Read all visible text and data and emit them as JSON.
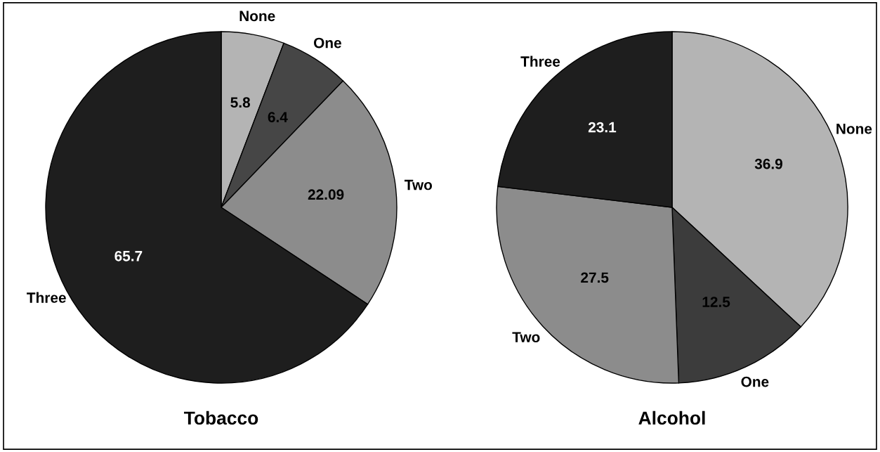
{
  "chart_data": [
    {
      "type": "pie",
      "title": "Tobacco",
      "categories": [
        "None",
        "One",
        "Two",
        "Three"
      ],
      "values": [
        5.8,
        6.4,
        22.09,
        65.7
      ],
      "colors": [
        "#b4b4b4",
        "#464646",
        "#8c8c8c",
        "#1e1e1e"
      ],
      "data_labels": true
    },
    {
      "type": "pie",
      "title": "Alcohol",
      "categories": [
        "None",
        "One",
        "Two",
        "Three"
      ],
      "values": [
        36.9,
        12.5,
        27.5,
        23.1
      ],
      "colors": [
        "#b4b4b4",
        "#3c3c3c",
        "#8c8c8c",
        "#1e1e1e"
      ],
      "data_labels": true
    }
  ]
}
